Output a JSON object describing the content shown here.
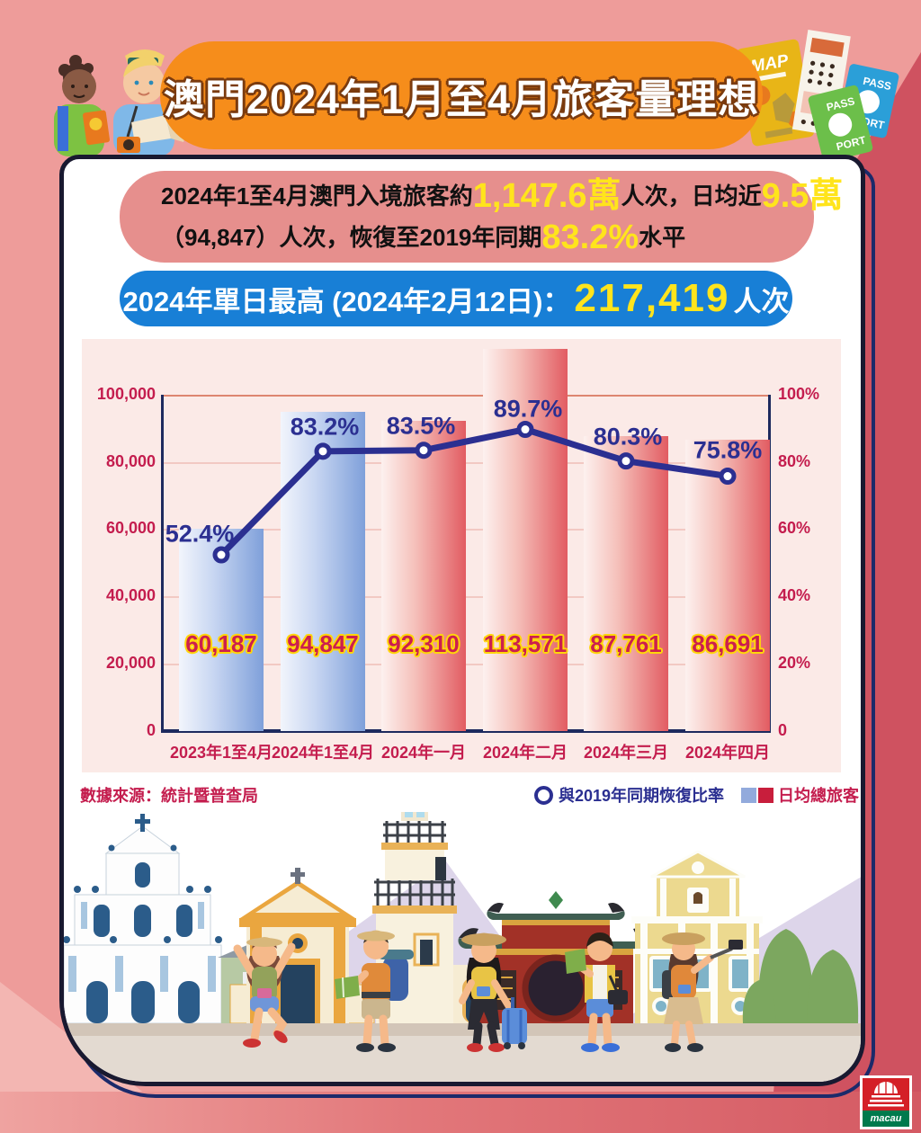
{
  "page": {
    "title": "澳門2024年1月至4月旅客量理想"
  },
  "summary": {
    "line1_pre": "2024年1至4月澳門入境旅客約",
    "line1_hl1": "1,147.6萬",
    "line1_mid": "人次，日均近",
    "line1_hl2": "9.5萬",
    "line2_pre": "（94,847）人次，恢復至2019年同期",
    "line2_hl": "83.2%",
    "line2_post": "水平"
  },
  "peak": {
    "label": "2024年單日最高 (2024年2月12日)：",
    "value": "217,419",
    "unit": "人次"
  },
  "chart_data": {
    "type": "combo-bar-line",
    "categories": [
      "2023年1至4月",
      "2024年1至4月",
      "2024年一月",
      "2024年二月",
      "2024年三月",
      "2024年四月"
    ],
    "series": [
      {
        "name": "日均總旅客",
        "type": "bar",
        "values": [
          60187,
          94847,
          92310,
          113571,
          87761,
          86691
        ],
        "labels": [
          "60,187",
          "94,847",
          "92,310",
          "113,571",
          "87,761",
          "86,691"
        ],
        "bar_styles": [
          "blue",
          "blue",
          "red",
          "red",
          "red",
          "red"
        ]
      },
      {
        "name": "與2019年同期恢復比率",
        "type": "line",
        "values": [
          52.4,
          83.2,
          83.5,
          89.7,
          80.3,
          75.8
        ],
        "labels": [
          "52.4%",
          "83.2%",
          "83.5%",
          "89.7%",
          "80.3%",
          "75.8%"
        ]
      }
    ],
    "y_left": {
      "ticks": [
        "100,000",
        "80,000",
        "60,000",
        "40,000",
        "20,000",
        "0"
      ],
      "max": 100000
    },
    "y_right": {
      "ticks": [
        "100%",
        "80%",
        "60%",
        "40%",
        "20%",
        "0"
      ],
      "max": 100
    },
    "grid": true,
    "legend_position": "bottom-right",
    "colors": {
      "line": "#2b2f91",
      "bar_blue": "#7fa0da",
      "bar_red": "#e25c62",
      "axis": "#1d2a5e",
      "tick_text": "#c41d4e"
    }
  },
  "footer": {
    "source": "數據來源：統計暨普查局",
    "legend_line": "與2019年同期恢復比率",
    "legend_bar": "日均總旅客"
  },
  "decor": {
    "map_label": "MAP",
    "pass_label": "PASS",
    "port_label": "PORT",
    "logo_text": "macau"
  }
}
